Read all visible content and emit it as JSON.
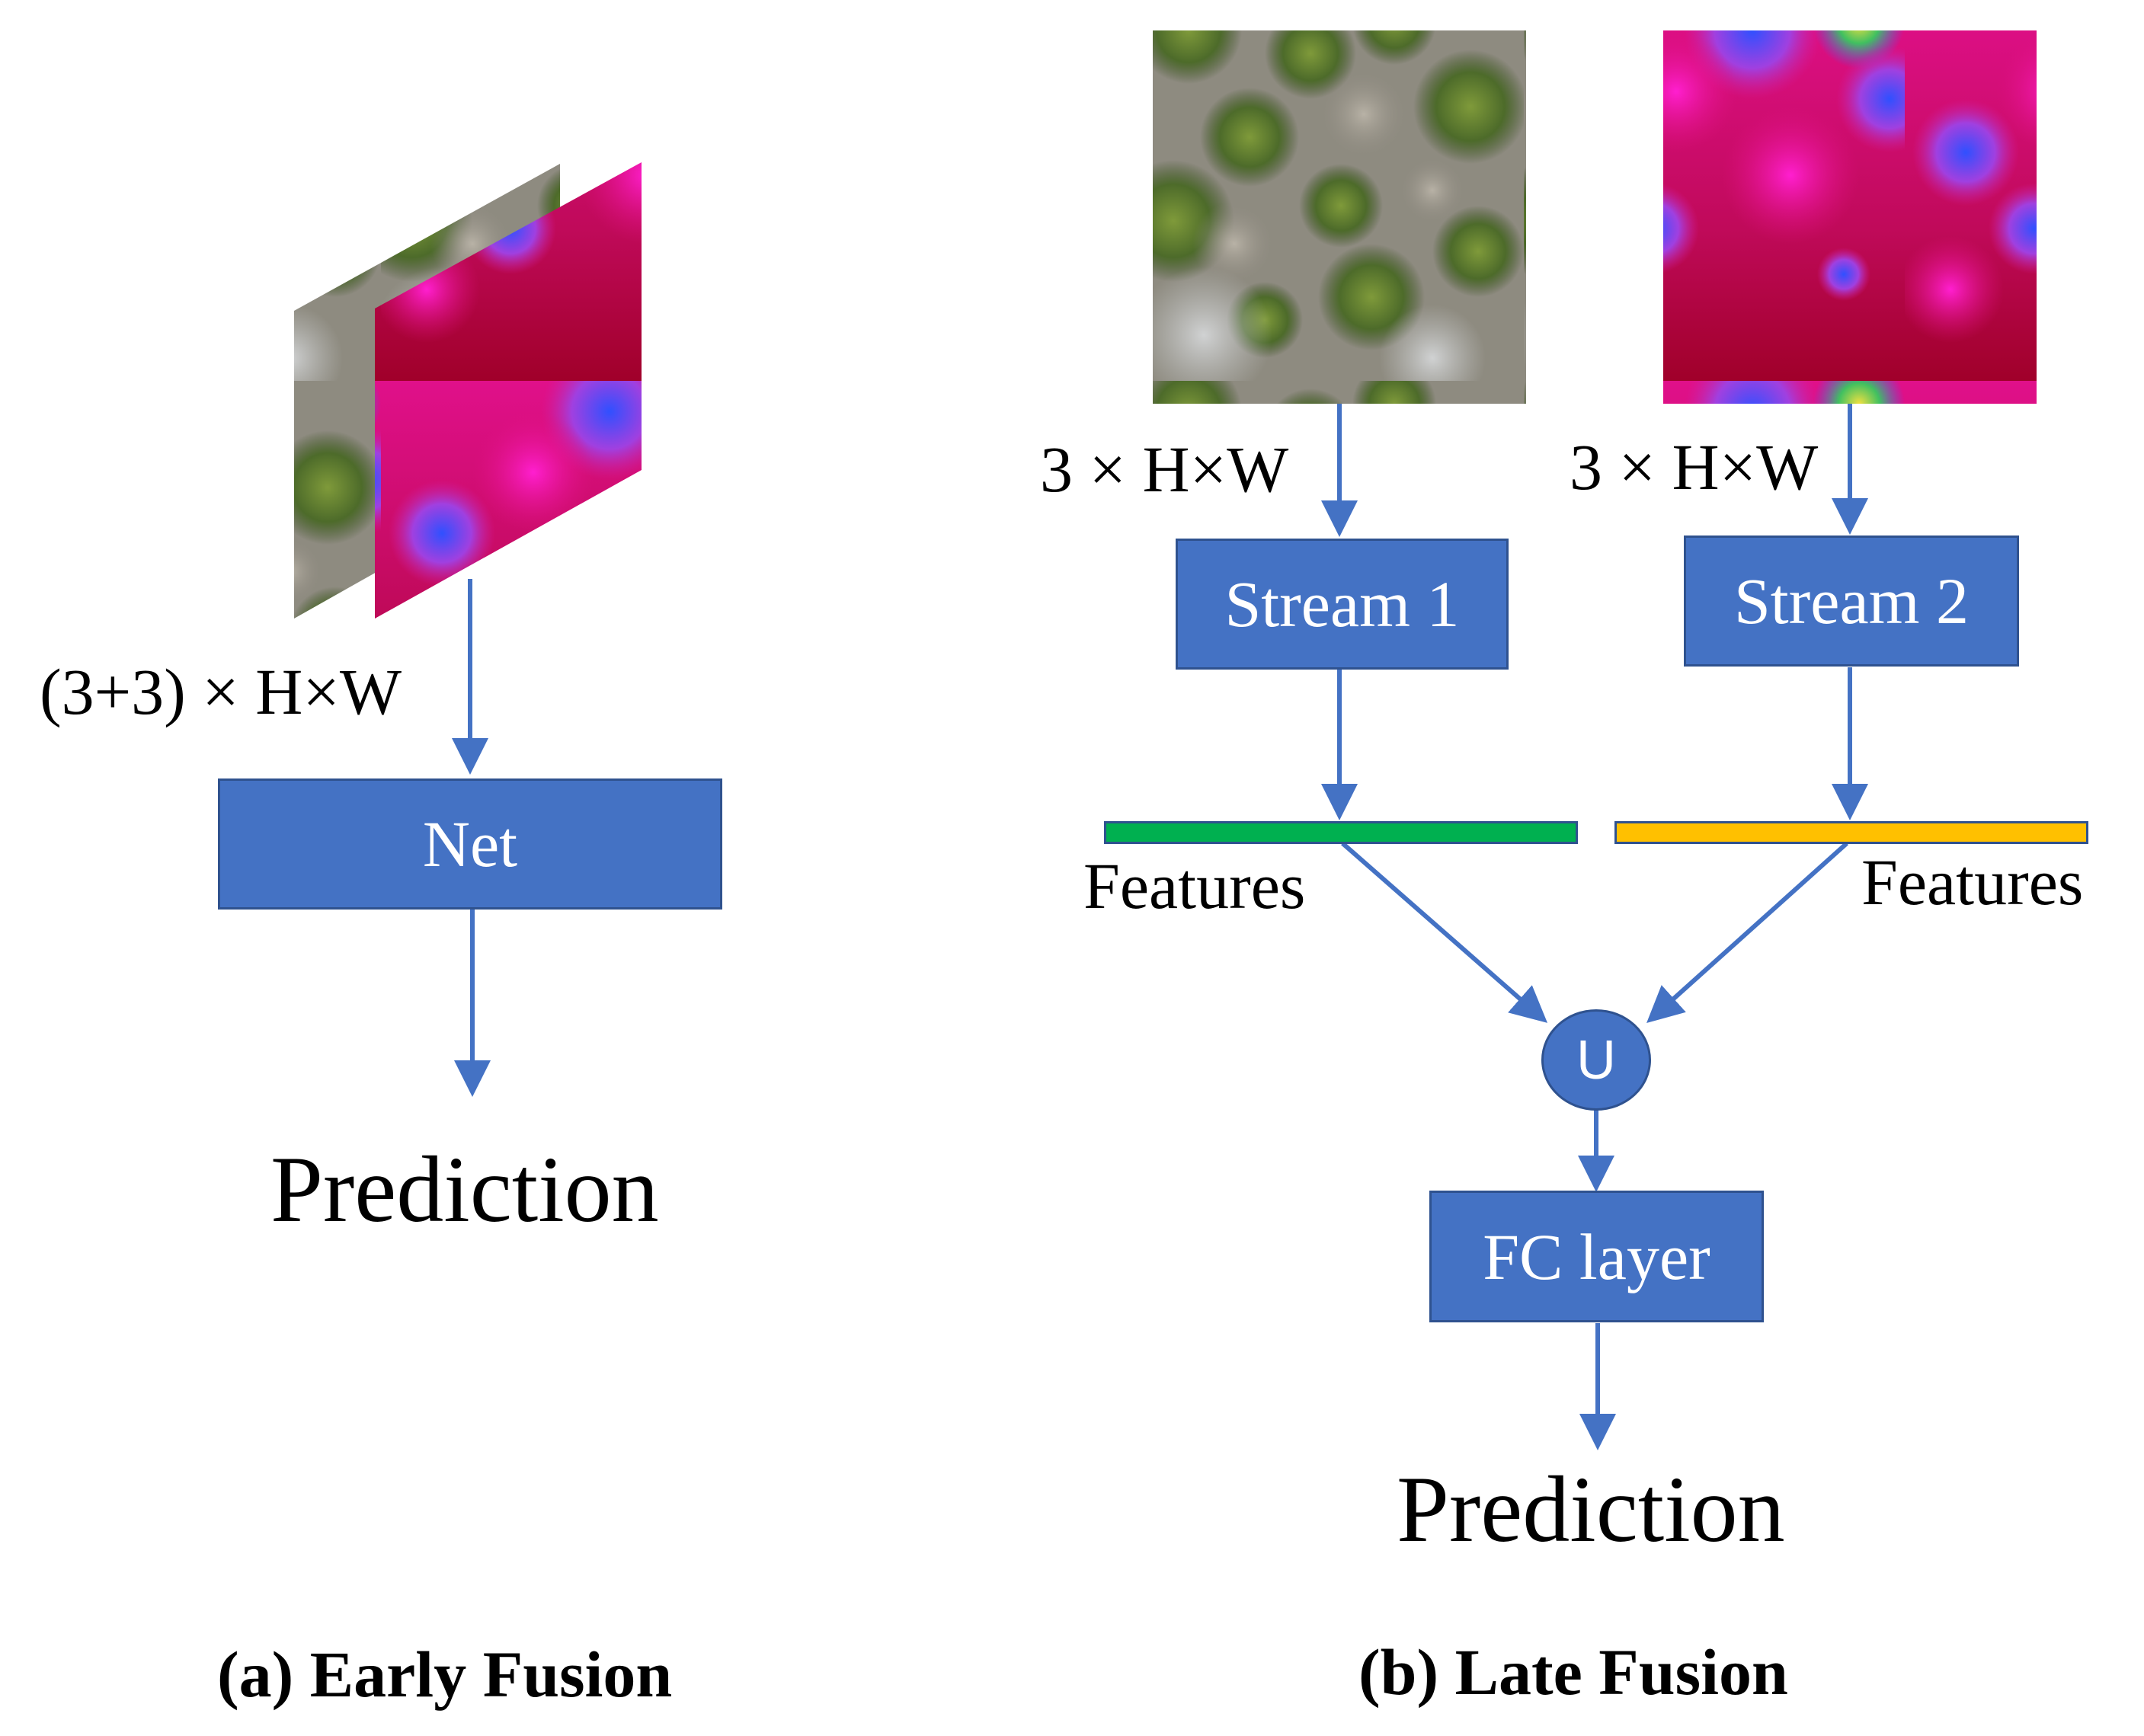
{
  "early_fusion": {
    "input_dim": "(3+3) × H×W",
    "block": "Net",
    "output": "Prediction",
    "caption": "(a) Early Fusion"
  },
  "late_fusion": {
    "input_dim_1": "3 × H×W",
    "input_dim_2": "3 × H×W",
    "stream_1": "Stream 1",
    "stream_2": "Stream 2",
    "features_1": "Features",
    "features_2": "Features",
    "fusion_op": "U",
    "fc": "FC layer",
    "output": "Prediction",
    "caption": "(b) Late Fusion"
  },
  "colors": {
    "block_fill": "#4472c4",
    "block_border": "#2f528f",
    "features_1": "#00b050",
    "features_2": "#ffc000",
    "arrow": "#4472c4"
  },
  "icons": {
    "rgb_image": "aerial-forest-rgb-photo",
    "thermal_image": "thermal-heatmap-photo"
  }
}
